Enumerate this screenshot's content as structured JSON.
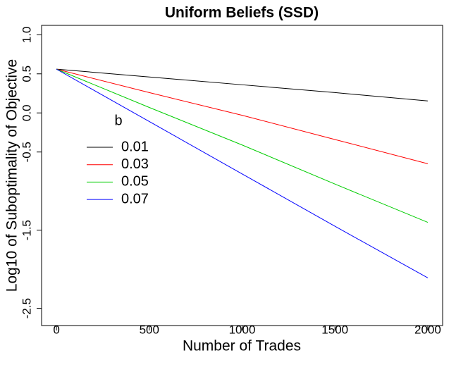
{
  "chart_data": {
    "type": "line",
    "title": "Uniform Beliefs (SSD)",
    "xlabel": "Number of Trades",
    "ylabel": "Log10 of Suboptimality of Objective",
    "x": [
      0,
      500,
      1000,
      1500,
      2000
    ],
    "xlim": [
      -80,
      2080
    ],
    "xticks": [
      0,
      500,
      1000,
      1500,
      2000
    ],
    "ylim": [
      -2.72,
      1.12
    ],
    "yticks": [
      {
        "value": 1,
        "label": "1.0"
      },
      {
        "value": 0.5,
        "label": "0.5"
      },
      {
        "value": 0,
        "label": "0.0"
      },
      -0.5,
      -1.5,
      -2.5
    ],
    "legend_title": "b",
    "series": [
      {
        "name": "0.01",
        "color": "#000000",
        "values": [
          0.56,
          0.46,
          0.36,
          0.26,
          0.153
        ]
      },
      {
        "name": "0.03",
        "color": "#ff0000",
        "values": [
          0.56,
          0.26,
          -0.03,
          -0.34,
          -0.65
        ]
      },
      {
        "name": "0.05",
        "color": "#00cd00",
        "values": [
          0.56,
          0.07,
          -0.41,
          -0.91,
          -1.4
        ]
      },
      {
        "name": "0.07",
        "color": "#0000ff",
        "values": [
          0.56,
          -0.11,
          -0.78,
          -1.45,
          -2.11
        ]
      }
    ]
  }
}
